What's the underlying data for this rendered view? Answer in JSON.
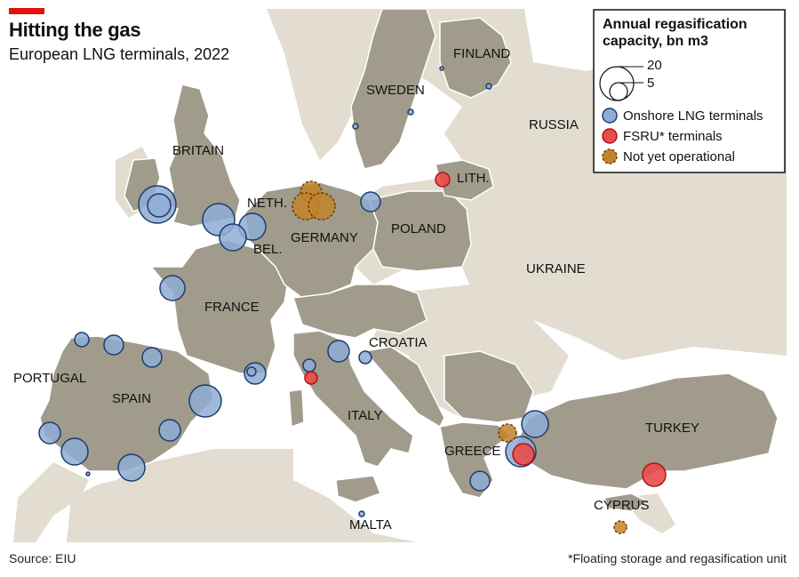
{
  "title": "Hitting the gas",
  "subtitle": "European LNG terminals, 2022",
  "source": "Source: EIU",
  "footnote": "*Floating storage and regasification unit",
  "colors": {
    "sea": "#ffffff",
    "land_other": "#e2ddd0",
    "land_eu": "#a19b8b",
    "border": "#ffffff",
    "onshore_fill": "#8fadd4",
    "onshore_stroke": "#1b3d6e",
    "fsru_fill": "#e84c4c",
    "fsru_stroke": "#b31212",
    "planned_fill": "#c2842a",
    "planned_stroke": "#6b3d06"
  },
  "legend": {
    "title_line1": "Annual regasification",
    "title_line2": "capacity, bn m3",
    "size_large": "20",
    "size_small": "5",
    "onshore_label": "Onshore LNG terminals",
    "fsru_label": "FSRU* terminals",
    "planned_label": "Not yet operational"
  },
  "country_labels": [
    "FINLAND",
    "SWEDEN",
    "RUSSIA",
    "BRITAIN",
    "LITH.",
    "NETH.",
    "POLAND",
    "GERMANY",
    "BEL.",
    "UKRAINE",
    "FRANCE",
    "CROATIA",
    "PORTUGAL",
    "SPAIN",
    "ITALY",
    "TURKEY",
    "GREECE",
    "CYPRUS",
    "MALTA"
  ]
}
